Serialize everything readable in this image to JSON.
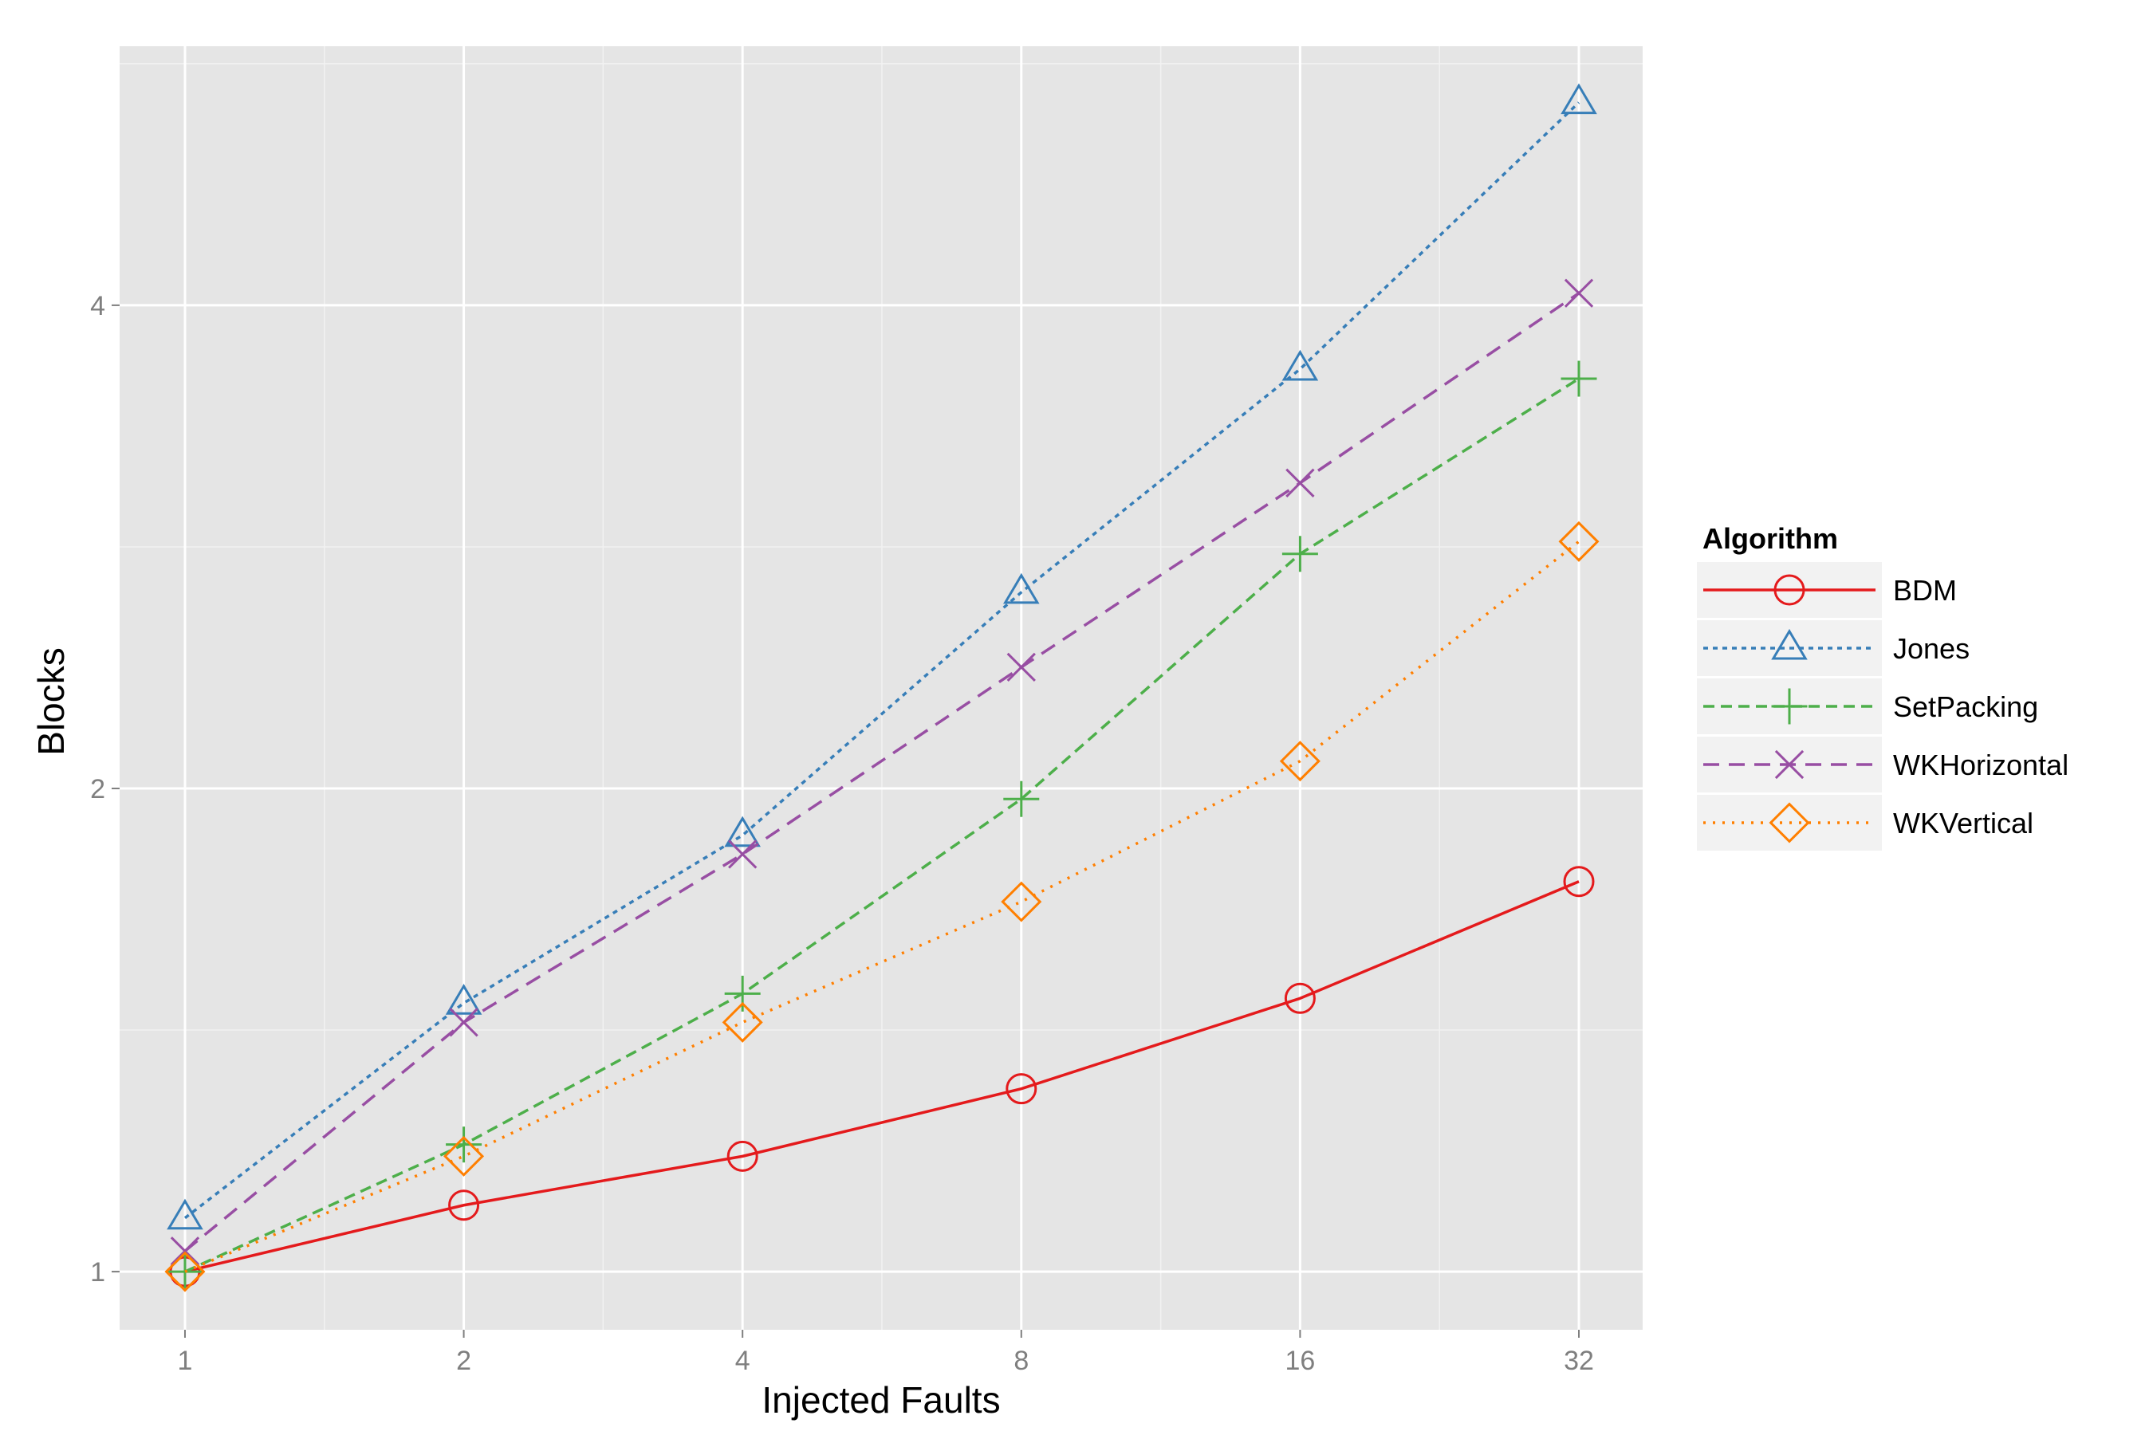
{
  "chart_data": {
    "type": "line",
    "xlabel": "Injected Faults",
    "ylabel": "Blocks",
    "x_scale": "log2",
    "y_scale": "log2",
    "x": [
      1,
      2,
      4,
      8,
      16,
      32
    ],
    "x_tick_labels": [
      "1",
      "2",
      "4",
      "8",
      "16",
      "32"
    ],
    "y_tick_labels": [
      "1",
      "2",
      "4"
    ],
    "y_ticks": [
      1,
      2,
      4
    ],
    "xlim": [
      0.85,
      37.5
    ],
    "ylim": [
      0.92,
      5.8
    ],
    "grid": true,
    "legend": {
      "title": "Algorithm",
      "placement": "right"
    },
    "series": [
      {
        "name": "BDM",
        "color": "#e41a1c",
        "marker": "circle",
        "linestyle": "solid",
        "values": [
          1.0,
          1.1,
          1.18,
          1.3,
          1.48,
          1.75
        ]
      },
      {
        "name": "Jones",
        "color": "#377eb8",
        "marker": "triangle",
        "linestyle": "dotted-short",
        "values": [
          1.08,
          1.47,
          1.87,
          2.65,
          3.65,
          5.35
        ]
      },
      {
        "name": "SetPacking",
        "color": "#4daf4a",
        "marker": "plus",
        "linestyle": "dashed",
        "values": [
          1.0,
          1.2,
          1.49,
          1.97,
          2.8,
          3.6
        ]
      },
      {
        "name": "WKHorizontal",
        "color": "#984ea3",
        "marker": "x",
        "linestyle": "longdash",
        "values": [
          1.03,
          1.43,
          1.82,
          2.38,
          3.1,
          4.07
        ]
      },
      {
        "name": "WKVertical",
        "color": "#ff7f00",
        "marker": "diamond",
        "linestyle": "dotted",
        "values": [
          1.0,
          1.18,
          1.43,
          1.7,
          2.08,
          2.85
        ]
      }
    ]
  }
}
